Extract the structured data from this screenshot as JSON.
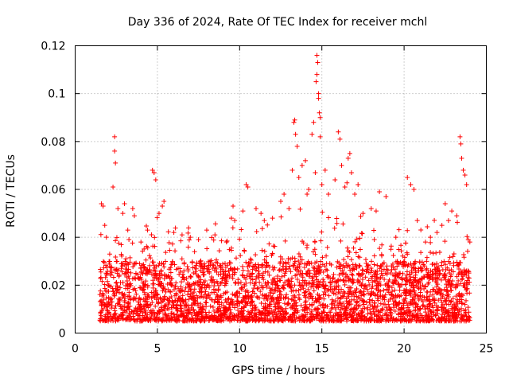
{
  "chart_data": {
    "type": "scatter",
    "title": "Day 336 of 2024, Rate Of TEC Index for receiver mchl",
    "xlabel": "GPS time / hours",
    "ylabel": "ROTI / TECUs",
    "xlim": [
      0,
      25
    ],
    "ylim": [
      0,
      0.12
    ],
    "xticks": [
      0,
      5,
      10,
      15,
      20,
      25
    ],
    "xtick_labels": [
      "0",
      "5",
      "10",
      "15",
      "20",
      "25"
    ],
    "yticks": [
      0,
      0.02,
      0.04,
      0.06,
      0.08,
      0.1,
      0.12
    ],
    "ytick_labels": [
      "0",
      "0.02",
      "0.04",
      "0.06",
      "0.08",
      "0.1",
      "0.12"
    ],
    "grid": true,
    "marker": "+",
    "color": "#ff0000",
    "series": [
      {
        "name": "ROTI",
        "x_range": [
          1.5,
          24.0
        ],
        "typical_band": [
          0.005,
          0.03
        ],
        "points": [
          [
            1.6,
            0.054
          ],
          [
            1.7,
            0.053
          ],
          [
            1.8,
            0.045
          ],
          [
            1.9,
            0.04
          ],
          [
            2.1,
            0.033
          ],
          [
            2.3,
            0.061
          ],
          [
            2.4,
            0.082
          ],
          [
            2.4,
            0.076
          ],
          [
            2.45,
            0.071
          ],
          [
            2.6,
            0.052
          ],
          [
            2.9,
            0.05
          ],
          [
            3.0,
            0.054
          ],
          [
            3.2,
            0.043
          ],
          [
            3.5,
            0.052
          ],
          [
            3.6,
            0.049
          ],
          [
            4.0,
            0.038
          ],
          [
            4.4,
            0.043
          ],
          [
            4.7,
            0.068
          ],
          [
            4.8,
            0.067
          ],
          [
            4.9,
            0.064
          ],
          [
            5.1,
            0.05
          ],
          [
            5.3,
            0.053
          ],
          [
            5.4,
            0.055
          ],
          [
            6.0,
            0.042
          ],
          [
            6.5,
            0.041
          ],
          [
            7.0,
            0.04
          ],
          [
            7.5,
            0.039
          ],
          [
            8.0,
            0.043
          ],
          [
            8.5,
            0.041
          ],
          [
            9.2,
            0.038
          ],
          [
            9.5,
            0.048
          ],
          [
            9.6,
            0.053
          ],
          [
            9.7,
            0.047
          ],
          [
            10.2,
            0.051
          ],
          [
            10.4,
            0.062
          ],
          [
            10.5,
            0.061
          ],
          [
            11.0,
            0.052
          ],
          [
            11.3,
            0.05
          ],
          [
            11.5,
            0.047
          ],
          [
            12.0,
            0.048
          ],
          [
            12.5,
            0.055
          ],
          [
            12.7,
            0.058
          ],
          [
            13.0,
            0.052
          ],
          [
            13.2,
            0.068
          ],
          [
            13.3,
            0.088
          ],
          [
            13.35,
            0.089
          ],
          [
            13.4,
            0.083
          ],
          [
            13.5,
            0.078
          ],
          [
            13.6,
            0.065
          ],
          [
            13.8,
            0.07
          ],
          [
            14.0,
            0.072
          ],
          [
            14.1,
            0.058
          ],
          [
            14.2,
            0.06
          ],
          [
            14.4,
            0.083
          ],
          [
            14.5,
            0.088
          ],
          [
            14.6,
            0.067
          ],
          [
            14.65,
            0.105
          ],
          [
            14.7,
            0.116
          ],
          [
            14.7,
            0.108
          ],
          [
            14.75,
            0.113
          ],
          [
            14.8,
            0.1
          ],
          [
            14.8,
            0.098
          ],
          [
            14.85,
            0.092
          ],
          [
            14.9,
            0.09
          ],
          [
            14.9,
            0.082
          ],
          [
            15.0,
            0.062
          ],
          [
            15.2,
            0.068
          ],
          [
            15.4,
            0.058
          ],
          [
            15.8,
            0.064
          ],
          [
            16.0,
            0.084
          ],
          [
            16.1,
            0.081
          ],
          [
            16.2,
            0.07
          ],
          [
            16.4,
            0.061
          ],
          [
            16.6,
            0.073
          ],
          [
            16.7,
            0.075
          ],
          [
            16.8,
            0.067
          ],
          [
            17.0,
            0.058
          ],
          [
            17.2,
            0.062
          ],
          [
            17.5,
            0.05
          ],
          [
            18.0,
            0.052
          ],
          [
            18.3,
            0.051
          ],
          [
            18.5,
            0.059
          ],
          [
            18.9,
            0.057
          ],
          [
            19.2,
            0.035
          ],
          [
            19.5,
            0.04
          ],
          [
            20.2,
            0.065
          ],
          [
            20.4,
            0.062
          ],
          [
            20.6,
            0.06
          ],
          [
            20.8,
            0.047
          ],
          [
            21.3,
            0.038
          ],
          [
            21.6,
            0.04
          ],
          [
            22.0,
            0.042
          ],
          [
            22.3,
            0.045
          ],
          [
            22.5,
            0.054
          ],
          [
            22.7,
            0.047
          ],
          [
            22.9,
            0.051
          ],
          [
            23.2,
            0.049
          ],
          [
            23.4,
            0.082
          ],
          [
            23.45,
            0.079
          ],
          [
            23.5,
            0.073
          ],
          [
            23.6,
            0.068
          ],
          [
            23.7,
            0.066
          ],
          [
            23.8,
            0.062
          ],
          [
            23.9,
            0.039
          ],
          [
            24.0,
            0.038
          ]
        ]
      }
    ]
  }
}
